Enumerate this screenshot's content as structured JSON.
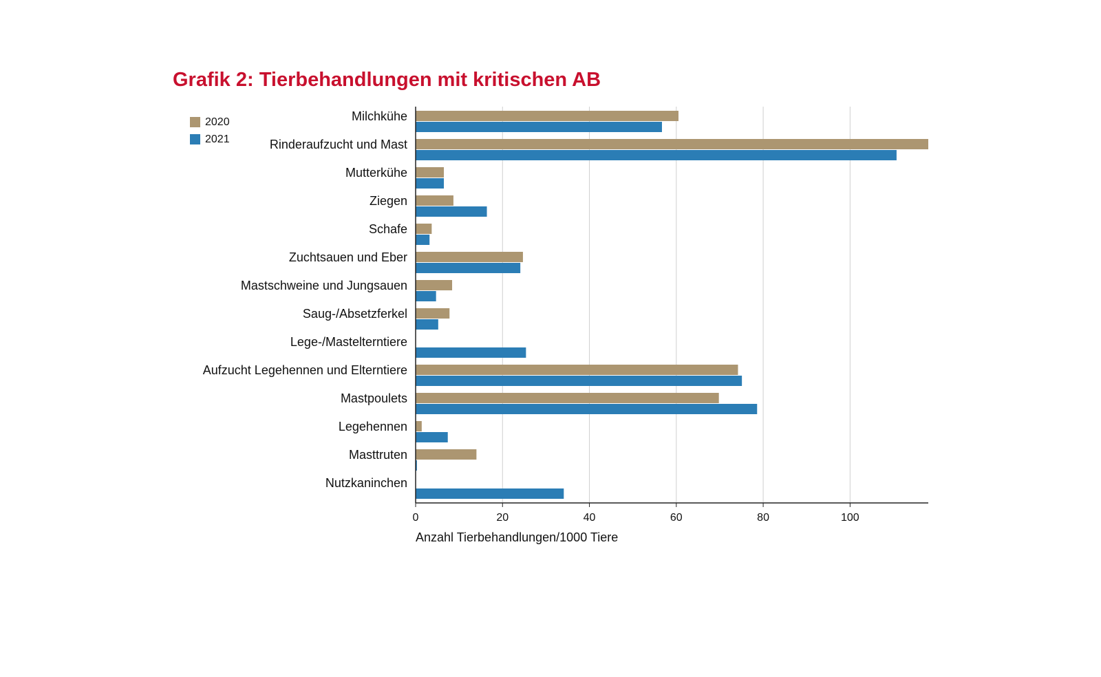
{
  "chart_data": {
    "type": "bar",
    "orientation": "horizontal",
    "title": "Grafik 2: Tierbehandlungen mit kritischen AB",
    "xlabel": "Anzahl Tierbehandlungen/1000 Tiere",
    "ylabel": "",
    "xlim": [
      0,
      118
    ],
    "xticks": [
      0,
      20,
      40,
      60,
      80,
      100
    ],
    "grid": true,
    "legend_position": "top-left",
    "categories": [
      "Milchkühe",
      "Rinderaufzucht und Mast",
      "Mutterkühe",
      "Ziegen",
      "Schafe",
      "Zuchtsauen und Eber",
      "Mastschweine und Jungsauen",
      "Saug-/Absetzferkel",
      "Lege-/Mastelterntiere",
      "Aufzucht Legehennen und Elterntiere",
      "Mastpoulets",
      "Legehennen",
      "Masttruten",
      "Nutzkaninchen"
    ],
    "series": [
      {
        "name": "2020",
        "color": "#ac9671",
        "values": [
          60.5,
          118,
          6.5,
          8.7,
          3.7,
          24.7,
          8.4,
          7.8,
          0,
          74.2,
          69.8,
          1.4,
          14,
          0
        ]
      },
      {
        "name": "2021",
        "color": "#2b7db5",
        "values": [
          56.7,
          110.7,
          6.5,
          16.4,
          3.2,
          24.1,
          4.7,
          5.2,
          25.4,
          75.1,
          78.6,
          7.4,
          0.3,
          34.1
        ]
      }
    ]
  }
}
